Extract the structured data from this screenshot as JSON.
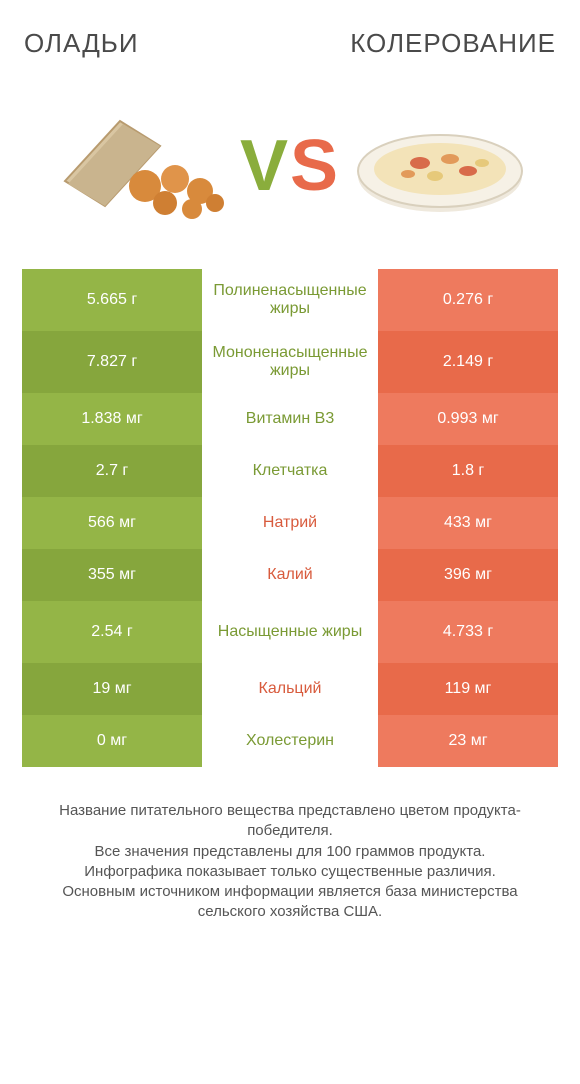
{
  "header": {
    "left_title": "ОЛАДЬИ",
    "right_title": "КОЛЕРОВАНИЕ"
  },
  "vs": {
    "v": "V",
    "s": "S"
  },
  "colors": {
    "green_light": "#94b547",
    "green_dark": "#86a63d",
    "orange_light": "#ee7a5e",
    "orange_dark": "#e86a4a",
    "green_text": "#7a9a34",
    "orange_text": "#d85b3d",
    "background": "#ffffff"
  },
  "rows": [
    {
      "left": "5.665 г",
      "label": "Полиненасыщенные жиры",
      "right": "0.276 г",
      "winner": "left",
      "tall": true
    },
    {
      "left": "7.827 г",
      "label": "Мононенасыщенные жиры",
      "right": "2.149 г",
      "winner": "left",
      "tall": true
    },
    {
      "left": "1.838 мг",
      "label": "Витамин B3",
      "right": "0.993 мг",
      "winner": "left",
      "tall": false
    },
    {
      "left": "2.7 г",
      "label": "Клетчатка",
      "right": "1.8 г",
      "winner": "left",
      "tall": false
    },
    {
      "left": "566 мг",
      "label": "Натрий",
      "right": "433 мг",
      "winner": "right",
      "tall": false
    },
    {
      "left": "355 мг",
      "label": "Калий",
      "right": "396 мг",
      "winner": "right",
      "tall": false
    },
    {
      "left": "2.54 г",
      "label": "Насыщенные жиры",
      "right": "4.733 г",
      "winner": "left",
      "tall": true
    },
    {
      "left": "19 мг",
      "label": "Кальций",
      "right": "119 мг",
      "winner": "right",
      "tall": false
    },
    {
      "left": "0 мг",
      "label": "Холестерин",
      "right": "23 мг",
      "winner": "left",
      "tall": false
    }
  ],
  "footnote": "Название питательного вещества представлено цветом продукта-победителя.\nВсе значения представлены для 100 граммов продукта.\nИнфографика показывает только существенные различия.\nОсновным источником информации является база министерства сельского хозяйства США."
}
